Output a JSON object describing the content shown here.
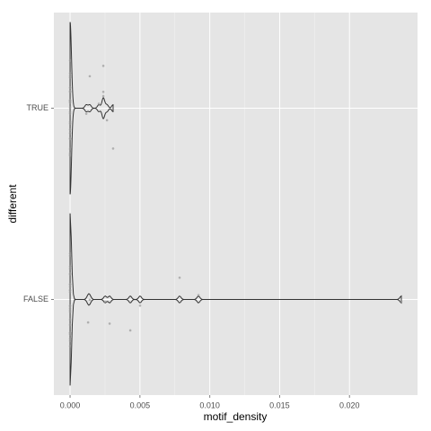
{
  "chart_data": {
    "type": "violin",
    "x_label": "motif_density",
    "y_label": "different",
    "categories": [
      "TRUE",
      "FALSE"
    ],
    "series": [
      {
        "name": "TRUE",
        "color": "#999999",
        "values": [
          0.00308,
          0.00238,
          0.00116,
          0.00238,
          0.00206,
          0.00264,
          0.00141,
          0.00238,
          0,
          0,
          0,
          0,
          0,
          0,
          0,
          0,
          0,
          0,
          0,
          0,
          0,
          0,
          0,
          0,
          0,
          0,
          0,
          0,
          0,
          0,
          0,
          0,
          0
        ]
      },
      {
        "name": "FALSE",
        "color": "#999999",
        "values": [
          0.00129,
          0.00501,
          0.00919,
          0.00784,
          0.00431,
          0.00283,
          0.00141,
          0.00251,
          0.02371,
          0,
          0,
          0,
          0,
          0,
          0,
          0,
          0,
          0,
          0,
          0,
          0,
          0,
          0,
          0,
          0,
          0,
          0,
          0,
          0,
          0,
          0,
          0,
          0,
          0
        ]
      }
    ],
    "xlim": [
      -0.00116,
      0.02487
    ],
    "xticks": [
      {
        "value": 0,
        "label": "0.000"
      },
      {
        "value": 0.005,
        "label": "0.005"
      },
      {
        "value": 0.01,
        "label": "0.010"
      },
      {
        "value": 0.015,
        "label": "0.015"
      },
      {
        "value": 0.02,
        "label": "0.020"
      }
    ],
    "grid": true
  }
}
